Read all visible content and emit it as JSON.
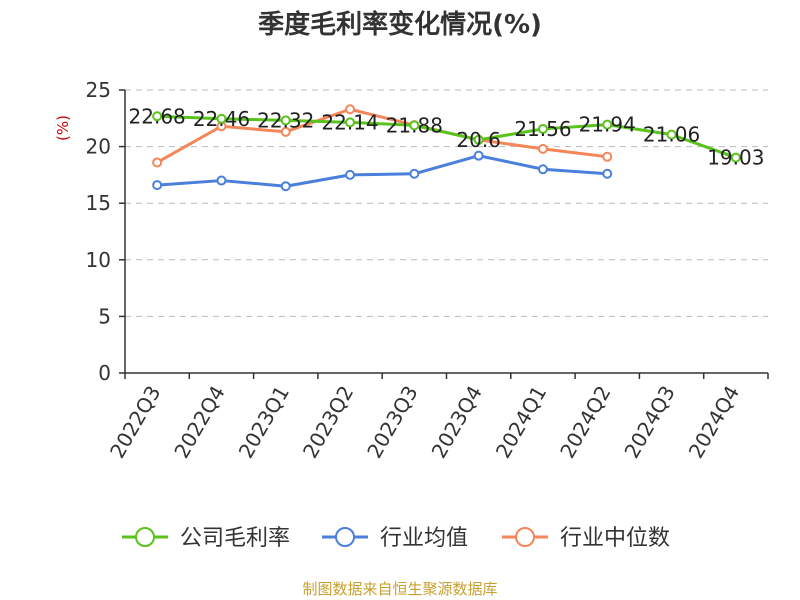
{
  "chart_data": {
    "type": "line",
    "title": "季度毛利率变化情况(%)",
    "ylabel": "(%)",
    "xlabel": "",
    "ylim": [
      0,
      25
    ],
    "yticks": [
      0,
      5,
      10,
      15,
      20,
      25
    ],
    "grid": true,
    "legend_position": "bottom",
    "categories": [
      "2022Q3",
      "2022Q4",
      "2023Q1",
      "2023Q2",
      "2023Q3",
      "2023Q4",
      "2024Q1",
      "2024Q2",
      "2024Q3",
      "2024Q4"
    ],
    "series": [
      {
        "name": "公司毛利率",
        "color": "#5ac31b",
        "values": [
          22.68,
          22.46,
          22.32,
          22.14,
          21.88,
          20.6,
          21.56,
          21.94,
          21.06,
          19.03
        ],
        "labels": [
          "22.68",
          "22.46",
          "22.32",
          "22.14",
          "21.88",
          "20.6",
          "21.56",
          "21.94",
          "21.06",
          "19.03"
        ]
      },
      {
        "name": "行业均值",
        "color": "#4a7fdc",
        "values": [
          16.6,
          17.0,
          16.5,
          17.5,
          17.6,
          19.2,
          18.0,
          17.6,
          null,
          null
        ]
      },
      {
        "name": "行业中位数",
        "color": "#f4865a",
        "values": [
          18.6,
          21.8,
          21.3,
          23.3,
          21.9,
          20.6,
          19.8,
          19.1,
          null,
          null
        ]
      }
    ]
  },
  "source": {
    "text": "制图数据来自恒生聚源数据库",
    "color": "#c8a030"
  }
}
